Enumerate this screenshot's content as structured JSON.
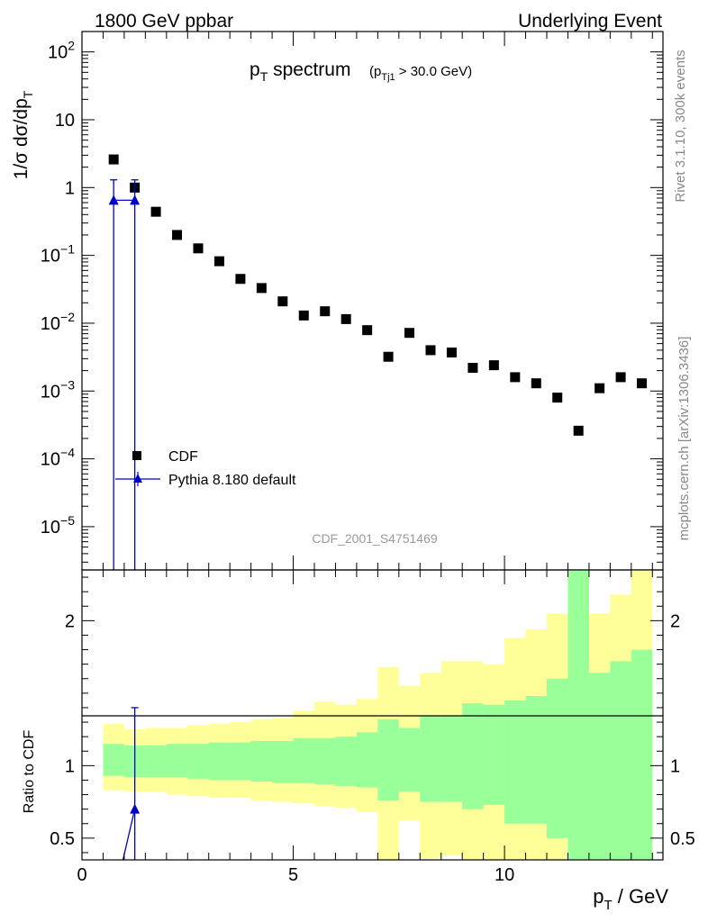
{
  "header": {
    "left": "1800 GeV ppbar",
    "right": "Underlying Event"
  },
  "side_labels": {
    "rivet": "Rivet 3.1.10,  300k events",
    "mcplots": "mcplots.cern.ch [arXiv:1306.3436]"
  },
  "main_plot": {
    "title_main": "p",
    "title_main_sub": "T",
    "title_rest": " spectrum",
    "title_cut_pre": "(p",
    "title_cut_sub": "Tj1",
    "title_cut_post": " > 30.0 GeV)",
    "ylabel": "1/σ dσ/dp",
    "ylabel_sub": "T",
    "watermark": "CDF_2001_S4751469",
    "legend": [
      {
        "label": "CDF",
        "color": "#000000",
        "marker": "square"
      },
      {
        "label": "Pythia 8.180 default",
        "color": "#0000cc",
        "marker": "triangle"
      }
    ]
  },
  "ratio_plot": {
    "ylabel": "Ratio to CDF"
  },
  "x_axis": {
    "label": "p",
    "label_sub": "T",
    "label_rest": " / GeV"
  },
  "chart_data": [
    {
      "type": "scatter",
      "name": "main",
      "xlim": [
        0,
        13.75
      ],
      "ylim": [
        2.3e-06,
        200
      ],
      "log_y": true,
      "x_ticks": [
        0,
        5,
        10
      ],
      "y_ticks": [
        {
          "value": 1e-05,
          "base": "10",
          "exp": "−5"
        },
        {
          "value": 0.0001,
          "base": "10",
          "exp": "−4"
        },
        {
          "value": 0.001,
          "base": "10",
          "exp": "−3"
        },
        {
          "value": 0.01,
          "base": "10",
          "exp": "−2"
        },
        {
          "value": 0.1,
          "base": "10",
          "exp": "−1"
        },
        {
          "value": 1,
          "base": "1",
          "exp": ""
        },
        {
          "value": 10,
          "base": "10",
          "exp": ""
        },
        {
          "value": 100,
          "base": "10",
          "exp": "2"
        }
      ],
      "series": [
        {
          "name": "CDF",
          "color": "#000000",
          "x": [
            0.75,
            1.25,
            1.75,
            2.25,
            2.75,
            3.25,
            3.75,
            4.25,
            4.75,
            5.25,
            5.75,
            6.25,
            6.75,
            7.25,
            7.75,
            8.25,
            8.75,
            9.25,
            9.75,
            10.25,
            10.75,
            11.25,
            11.75,
            12.25,
            12.75,
            13.25
          ],
          "y": [
            2.6,
            1.0,
            0.44,
            0.2,
            0.127,
            0.082,
            0.045,
            0.033,
            0.021,
            0.013,
            0.015,
            0.0115,
            0.0079,
            0.0032,
            0.0072,
            0.004,
            0.0037,
            0.0022,
            0.0024,
            0.0016,
            0.0013,
            0.0008,
            0.00026,
            0.0011,
            0.0016,
            0.0013
          ]
        },
        {
          "name": "Pythia 8.180 default",
          "color": "#0000cc",
          "x": [
            0.75,
            1.25
          ],
          "y": [
            0.65,
            0.65
          ],
          "y_err_up": [
            1.3,
            1.3
          ],
          "y_err_down": [
            2e-06,
            2e-06
          ]
        }
      ]
    },
    {
      "type": "area",
      "name": "ratio",
      "xlim": [
        0,
        13.75
      ],
      "ylim": [
        0.35,
        2.35
      ],
      "y_ticks": [
        0.5,
        1,
        2
      ],
      "bin_edges": [
        0.5,
        1.0,
        1.5,
        2.0,
        2.5,
        3.0,
        3.5,
        4.0,
        4.5,
        5.0,
        5.5,
        6.0,
        6.5,
        7.0,
        7.5,
        8.0,
        8.5,
        9.0,
        9.5,
        10.0,
        10.5,
        11.0,
        11.5,
        12.0,
        12.5,
        13.0,
        13.5
      ],
      "band_inner": {
        "color": "#99ff99",
        "low": [
          0.93,
          0.92,
          0.92,
          0.92,
          0.91,
          0.9,
          0.9,
          0.89,
          0.88,
          0.88,
          0.87,
          0.86,
          0.85,
          0.76,
          0.82,
          0.75,
          0.75,
          0.7,
          0.73,
          0.6,
          0.6,
          0.5,
          0.3,
          0.3,
          0.3,
          0.3
        ],
        "high": [
          1.15,
          1.14,
          1.14,
          1.15,
          1.15,
          1.16,
          1.16,
          1.17,
          1.17,
          1.19,
          1.19,
          1.2,
          1.23,
          1.32,
          1.26,
          1.34,
          1.34,
          1.43,
          1.42,
          1.45,
          1.48,
          1.6,
          2.4,
          1.64,
          1.72,
          1.8
        ]
      },
      "band_outer": {
        "color": "#ffff99",
        "low": [
          0.83,
          0.82,
          0.82,
          0.8,
          0.79,
          0.78,
          0.78,
          0.76,
          0.75,
          0.74,
          0.72,
          0.71,
          0.68,
          0.35,
          0.62,
          0.36,
          0.38,
          0.3,
          0.3,
          0.3,
          0.3,
          0.3,
          0.3,
          0.3,
          0.3,
          0.3
        ],
        "high": [
          1.29,
          1.25,
          1.26,
          1.26,
          1.28,
          1.29,
          1.3,
          1.32,
          1.33,
          1.38,
          1.44,
          1.42,
          1.46,
          1.68,
          1.55,
          1.64,
          1.72,
          1.72,
          1.7,
          1.88,
          1.94,
          2.05,
          2.4,
          2.05,
          2.18,
          2.4
        ]
      },
      "series": [
        {
          "name": "Pythia 8.180 default",
          "color": "#0000cc",
          "x": [
            1.25
          ],
          "y": [
            0.7
          ],
          "y_err_up": [
            1.4
          ],
          "y_err_down": [
            0.3
          ]
        }
      ]
    }
  ]
}
